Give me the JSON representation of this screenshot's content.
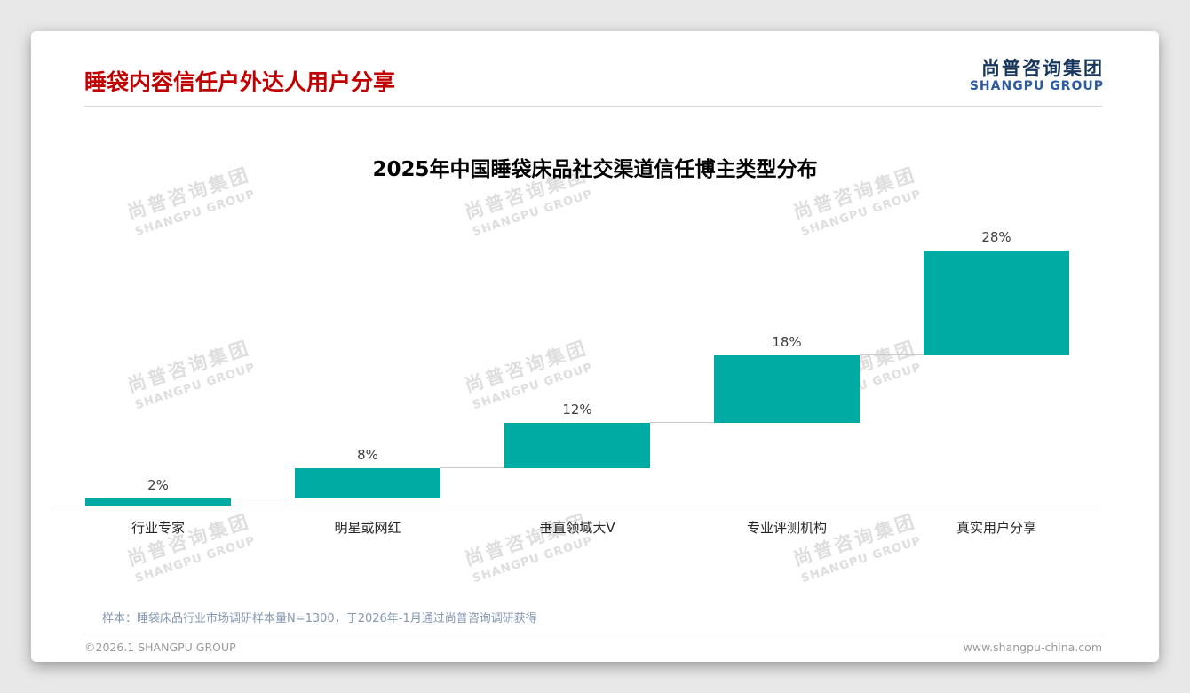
{
  "page": {
    "title": "睡袋内容信任户外达人用户分享",
    "logo": {
      "cn": "尚普咨询集团",
      "en": "SHANGPU GROUP"
    },
    "watermark": {
      "cn": "尚普咨询集团",
      "en": "SHANGPU GROUP"
    },
    "sample_note": "样本：睡袋床品行业市场调研样本量N=1300，于2026年-1月通过尚普咨询调研获得",
    "footer": {
      "left": "©2026.1 SHANGPU GROUP",
      "right": "www.shangpu-china.com"
    }
  },
  "chart_data": {
    "type": "bar",
    "subtype": "waterfall-staircase",
    "title": "2025年中国睡袋床品社交渠道信任博主类型分布",
    "categories": [
      "行业专家",
      "明星或网红",
      "垂直领域大V",
      "专业评测机构",
      "真实用户分享"
    ],
    "values": [
      2,
      8,
      12,
      18,
      28
    ],
    "labels": [
      "2%",
      "8%",
      "12%",
      "18%",
      "28%"
    ],
    "cumulative": [
      2,
      10,
      22,
      40,
      68
    ],
    "bar_color": "#00aba3",
    "ylim": [
      0,
      70
    ],
    "grid": false,
    "legend": "none",
    "xlabel": "",
    "ylabel": ""
  }
}
